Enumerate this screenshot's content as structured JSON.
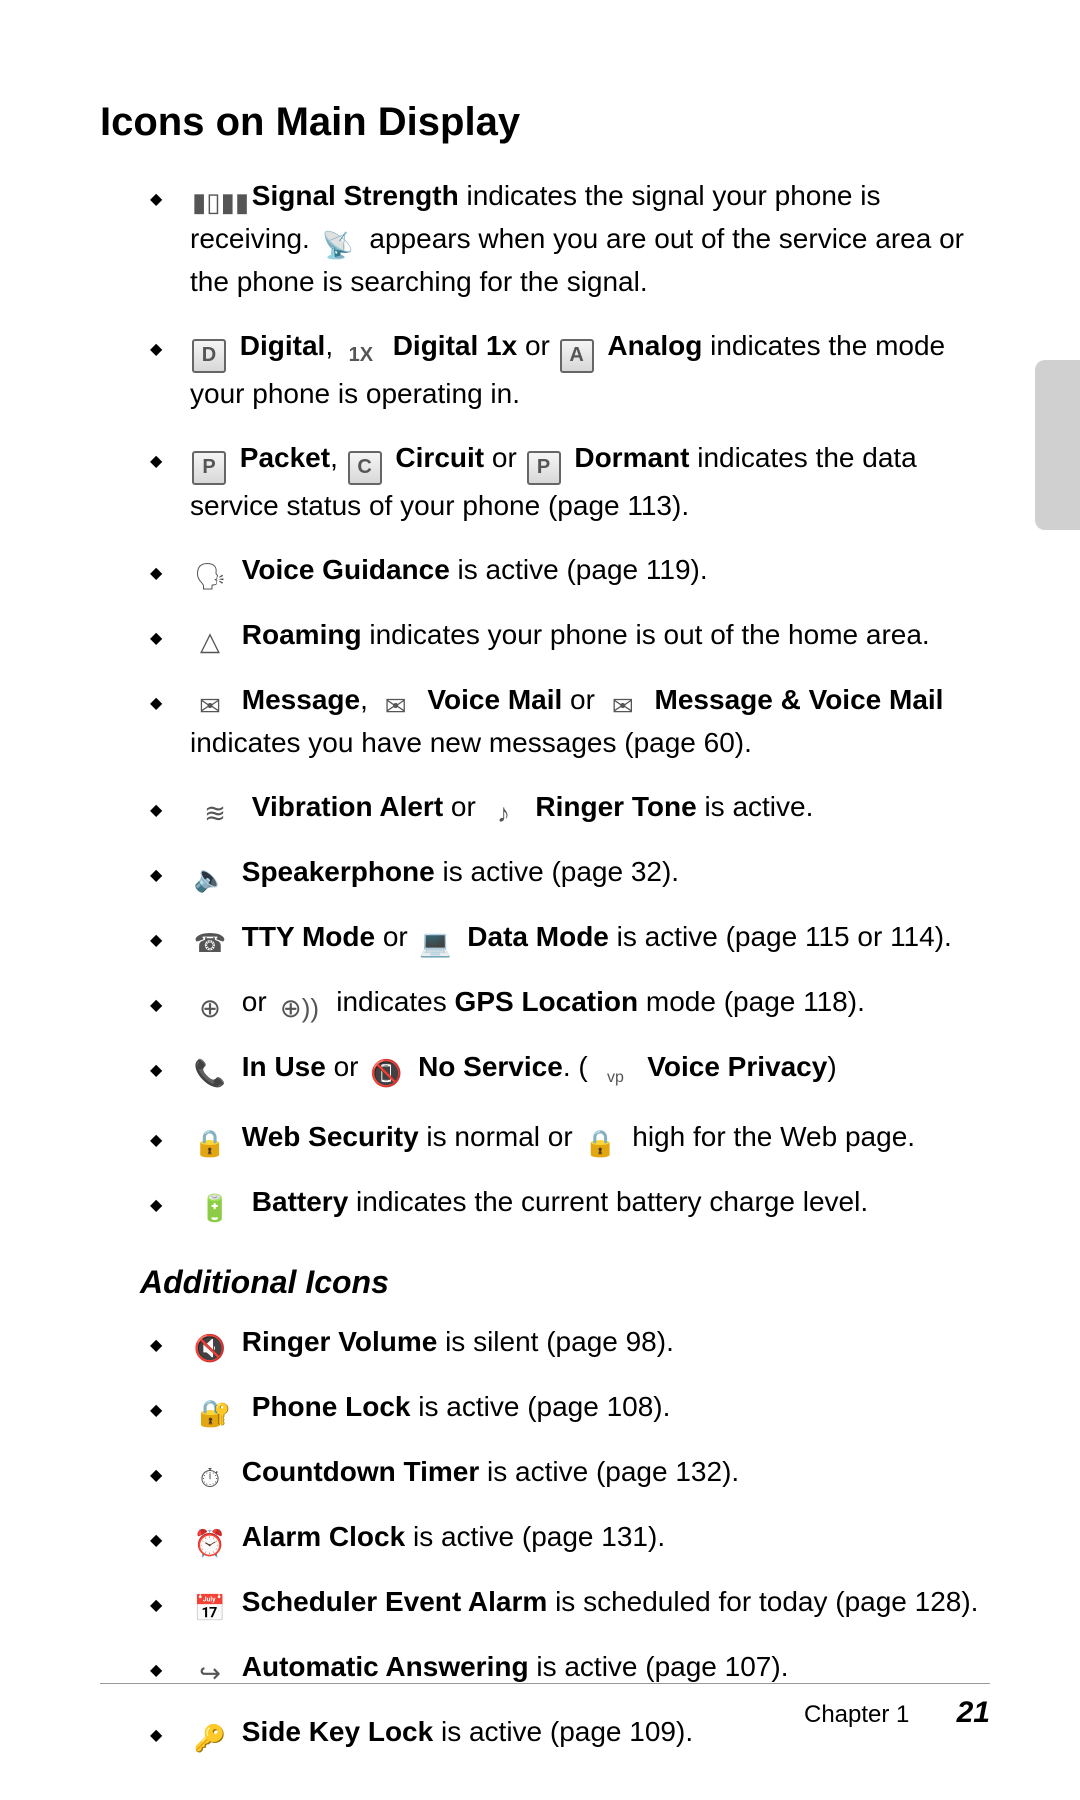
{
  "title": "Icons on Main Display",
  "subhead": "Additional Icons",
  "footer": {
    "chapter": "Chapter 1",
    "page": "21"
  },
  "t": {
    "sig_bold": "Signal Strength",
    "sig_t1": " indicates the signal your phone is receiving. ",
    "sig_t2": " appears when you are out of the service area or the phone is searching for the signal.",
    "digital": "Digital",
    "comma": ", ",
    "digital1x": "Digital 1x",
    "or": " or ",
    "analog": "Analog",
    "mode_tail": " indicates the mode your phone is operating in.",
    "packet": "Packet",
    "circuit": "Circuit",
    "dormant": "Dormant",
    "data_tail": " indicates the data service status of your phone (page 113).",
    "voiceg": "Voice Guidance",
    "voiceg_tail": " is active (page 119).",
    "roaming": "Roaming",
    "roaming_tail": " indicates your phone is out of the home area.",
    "message": "Message",
    "voicemail": "Voice Mail",
    "msgvm": "Message & Voice Mail",
    "msg_tail": " indicates you have new messages (page 60).",
    "vib": "Vibration Alert",
    "ringer": "Ringer Tone",
    "active_tail": " is active.",
    "speaker": "Speakerphone",
    "speaker_tail": " is active (page 32).",
    "tty": "TTY Mode",
    "datamode": "Data Mode",
    "tty_tail": " is active (page 115 or 114).",
    "gps_mid": " indicates ",
    "gps_bold": "GPS Location",
    "gps_tail": " mode (page 118).",
    "inuse": "In Use",
    "noservice": "No Service",
    "dot_open": ". ( ",
    "vprivacy": "Voice Privacy",
    "close_paren": ")",
    "websec": "Web Security",
    "websec_mid": " is normal or ",
    "websec_tail": " high for the Web page.",
    "battery": "Battery",
    "battery_tail": " indicates the current battery charge level.",
    "ringervol": "Ringer Volume",
    "ringervol_tail": " is silent (page 98).",
    "plock": "Phone Lock",
    "plock_tail": " is active (page 108).",
    "countdown": "Countdown Timer",
    "countdown_tail": " is active (page 132).",
    "alarm": "Alarm Clock",
    "alarm_tail": " is active (page 131).",
    "sched": "Scheduler Event Alarm",
    "sched_tail": " is scheduled for today (page 128).",
    "autoanswer": "Automatic Answering",
    "autoanswer_tail": " is active (page 107).",
    "sidekey": "Side Key Lock",
    "sidekey_tail": " is active (page 109)."
  },
  "glyph": {
    "signal": "▮▯▮▮",
    "antenna": "📡",
    "D": "D",
    "X1": "1X",
    "A": "A",
    "P": "P",
    "C": "C",
    "P2": "P",
    "voice_guide": "🗣",
    "roam": "△",
    "env": "✉",
    "envflag": "✉",
    "envvm": "✉",
    "vib": "≋",
    "note": "♪",
    "speaker": "🔈",
    "tty": "☎",
    "laptop": "💻",
    "gps1": "⊕",
    "gps2": "⊕))",
    "call": "📞",
    "nocall": "📵",
    "vp": "vp",
    "lock1": "🔒",
    "lock2": "🔒",
    "battery": "🔋",
    "silent": "🔇",
    "plock": "🔐",
    "timer": "⏱",
    "alarm": "⏰",
    "sched": "📅",
    "auto": "↪",
    "sidekey": "🔑"
  }
}
